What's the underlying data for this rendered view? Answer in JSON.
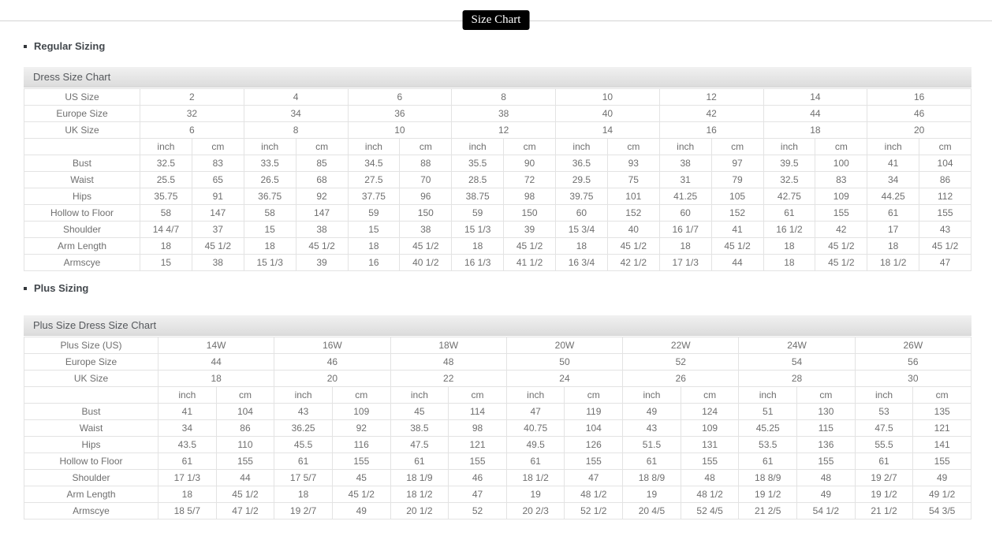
{
  "page": {
    "title": "Size Chart"
  },
  "regular": {
    "heading": "Regular Sizing",
    "table_title": "Dress Size Chart",
    "units": [
      "inch",
      "cm"
    ],
    "size_rows": [
      {
        "label": "US Size",
        "values": [
          "2",
          "4",
          "6",
          "8",
          "10",
          "12",
          "14",
          "16"
        ]
      },
      {
        "label": "Europe Size",
        "values": [
          "32",
          "34",
          "36",
          "38",
          "40",
          "42",
          "44",
          "46"
        ]
      },
      {
        "label": "UK Size",
        "values": [
          "6",
          "8",
          "10",
          "12",
          "14",
          "16",
          "18",
          "20"
        ]
      }
    ],
    "measure_rows": [
      {
        "label": "Bust",
        "values": [
          "32.5",
          "83",
          "33.5",
          "85",
          "34.5",
          "88",
          "35.5",
          "90",
          "36.5",
          "93",
          "38",
          "97",
          "39.5",
          "100",
          "41",
          "104"
        ]
      },
      {
        "label": "Waist",
        "values": [
          "25.5",
          "65",
          "26.5",
          "68",
          "27.5",
          "70",
          "28.5",
          "72",
          "29.5",
          "75",
          "31",
          "79",
          "32.5",
          "83",
          "34",
          "86"
        ]
      },
      {
        "label": "Hips",
        "values": [
          "35.75",
          "91",
          "36.75",
          "92",
          "37.75",
          "96",
          "38.75",
          "98",
          "39.75",
          "101",
          "41.25",
          "105",
          "42.75",
          "109",
          "44.25",
          "112"
        ]
      },
      {
        "label": "Hollow to Floor",
        "values": [
          "58",
          "147",
          "58",
          "147",
          "59",
          "150",
          "59",
          "150",
          "60",
          "152",
          "60",
          "152",
          "61",
          "155",
          "61",
          "155"
        ]
      },
      {
        "label": "Shoulder",
        "values": [
          "14 4/7",
          "37",
          "15",
          "38",
          "15",
          "38",
          "15 1/3",
          "39",
          "15 3/4",
          "40",
          "16 1/7",
          "41",
          "16 1/2",
          "42",
          "17",
          "43"
        ]
      },
      {
        "label": "Arm Length",
        "values": [
          "18",
          "45 1/2",
          "18",
          "45 1/2",
          "18",
          "45 1/2",
          "18",
          "45 1/2",
          "18",
          "45 1/2",
          "18",
          "45 1/2",
          "18",
          "45 1/2",
          "18",
          "45 1/2"
        ]
      },
      {
        "label": "Armscye",
        "values": [
          "15",
          "38",
          "15 1/3",
          "39",
          "16",
          "40 1/2",
          "16 1/3",
          "41 1/2",
          "16 3/4",
          "42 1/2",
          "17 1/3",
          "44",
          "18",
          "45 1/2",
          "18 1/2",
          "47"
        ]
      }
    ]
  },
  "plus": {
    "heading": "Plus Sizing",
    "table_title": "Plus Size Dress Size Chart",
    "units": [
      "inch",
      "cm"
    ],
    "size_rows": [
      {
        "label": "Plus Size (US)",
        "values": [
          "14W",
          "16W",
          "18W",
          "20W",
          "22W",
          "24W",
          "26W"
        ]
      },
      {
        "label": "Europe Size",
        "values": [
          "44",
          "46",
          "48",
          "50",
          "52",
          "54",
          "56"
        ]
      },
      {
        "label": "UK Size",
        "values": [
          "18",
          "20",
          "22",
          "24",
          "26",
          "28",
          "30"
        ]
      }
    ],
    "measure_rows": [
      {
        "label": "Bust",
        "values": [
          "41",
          "104",
          "43",
          "109",
          "45",
          "114",
          "47",
          "119",
          "49",
          "124",
          "51",
          "130",
          "53",
          "135"
        ]
      },
      {
        "label": "Waist",
        "values": [
          "34",
          "86",
          "36.25",
          "92",
          "38.5",
          "98",
          "40.75",
          "104",
          "43",
          "109",
          "45.25",
          "115",
          "47.5",
          "121"
        ]
      },
      {
        "label": "Hips",
        "values": [
          "43.5",
          "110",
          "45.5",
          "116",
          "47.5",
          "121",
          "49.5",
          "126",
          "51.5",
          "131",
          "53.5",
          "136",
          "55.5",
          "141"
        ]
      },
      {
        "label": "Hollow to Floor",
        "values": [
          "61",
          "155",
          "61",
          "155",
          "61",
          "155",
          "61",
          "155",
          "61",
          "155",
          "61",
          "155",
          "61",
          "155"
        ]
      },
      {
        "label": "Shoulder",
        "values": [
          "17 1/3",
          "44",
          "17 5/7",
          "45",
          "18 1/9",
          "46",
          "18 1/2",
          "47",
          "18 8/9",
          "48",
          "18 8/9",
          "48",
          "19 2/7",
          "49"
        ]
      },
      {
        "label": "Arm Length",
        "values": [
          "18",
          "45 1/2",
          "18",
          "45 1/2",
          "18 1/2",
          "47",
          "19",
          "48 1/2",
          "19",
          "48 1/2",
          "19 1/2",
          "49",
          "19 1/2",
          "49 1/2"
        ]
      },
      {
        "label": "Armscye",
        "values": [
          "18 5/7",
          "47 1/2",
          "19 2/7",
          "49",
          "20 1/2",
          "52",
          "20 2/3",
          "52 1/2",
          "20 4/5",
          "52 4/5",
          "21 2/5",
          "54 1/2",
          "21 1/2",
          "54 3/5"
        ]
      }
    ]
  }
}
